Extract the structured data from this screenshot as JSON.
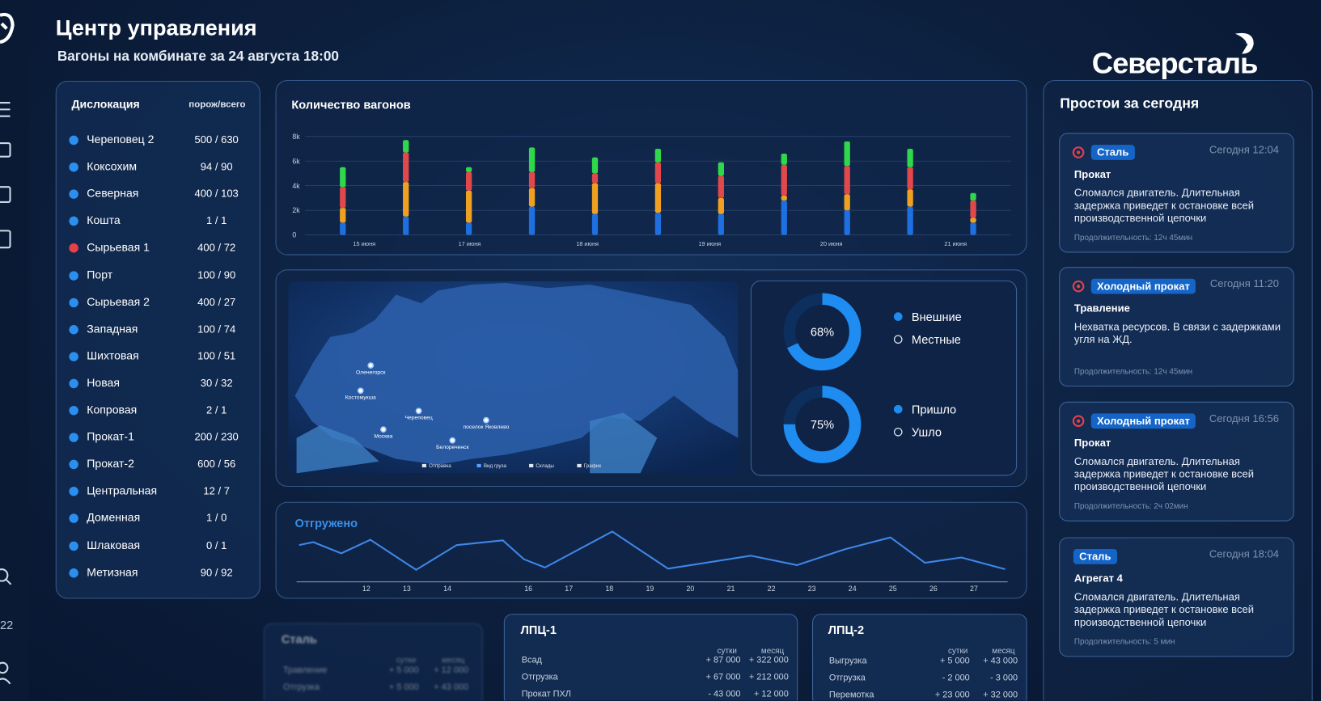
{
  "header": {
    "title": "Центр управления",
    "subtitle": "Вагоны на комбинате за 24 августа 18:00",
    "brand": "Северсталь"
  },
  "sidebar": {
    "badge": "22"
  },
  "dislocation": {
    "title": "Дислокация",
    "column": "порож/всего",
    "rows": [
      {
        "name": "Череповец 2",
        "value": "500 / 630",
        "color": "#2b8ff0"
      },
      {
        "name": "Коксохим",
        "value": "94 / 90",
        "color": "#2b8ff0"
      },
      {
        "name": "Северная",
        "value": "400 / 103",
        "color": "#2b8ff0"
      },
      {
        "name": "Кошта",
        "value": "1 / 1",
        "color": "#2b8ff0"
      },
      {
        "name": "Сырьевая 1",
        "value": "400 / 72",
        "color": "#e8404a"
      },
      {
        "name": "Порт",
        "value": "100 / 90",
        "color": "#2b8ff0"
      },
      {
        "name": "Сырьевая 2",
        "value": "400 / 27",
        "color": "#2b8ff0"
      },
      {
        "name": "Западная",
        "value": "100 / 74",
        "color": "#2b8ff0"
      },
      {
        "name": "Шихтовая",
        "value": "100 / 51",
        "color": "#2b8ff0"
      },
      {
        "name": "Новая",
        "value": "30 / 32",
        "color": "#2b8ff0"
      },
      {
        "name": "Копровая",
        "value": "2 / 1",
        "color": "#2b8ff0"
      },
      {
        "name": "Прокат-1",
        "value": "200 / 230",
        "color": "#2b8ff0"
      },
      {
        "name": "Прокат-2",
        "value": "600 / 56",
        "color": "#2b8ff0"
      },
      {
        "name": "Центральная",
        "value": "12 / 7",
        "color": "#2b8ff0"
      },
      {
        "name": "Доменная",
        "value": "1 / 0",
        "color": "#2b8ff0"
      },
      {
        "name": "Шлаковая",
        "value": "0 / 1",
        "color": "#2b8ff0"
      },
      {
        "name": "Метизная",
        "value": "90 / 92",
        "color": "#2b8ff0"
      }
    ]
  },
  "chart_data": [
    {
      "type": "bar",
      "stacked": true,
      "title": "Количество вагонов",
      "x": [
        0,
        1,
        2,
        3,
        4,
        5,
        6,
        7,
        8,
        9,
        10
      ],
      "series": [
        {
          "color": "#1e6fe0",
          "values": [
            1.0,
            1.5,
            1.0,
            2.3,
            1.7,
            1.8,
            1.7,
            2.8,
            2.0,
            2.3,
            1.0
          ]
        },
        {
          "color": "#f0a020",
          "values": [
            1.2,
            2.8,
            2.6,
            1.5,
            2.5,
            2.4,
            1.3,
            0.4,
            1.3,
            1.4,
            0.4
          ]
        },
        {
          "color": "#e0484c",
          "values": [
            1.7,
            2.4,
            1.5,
            1.3,
            0.8,
            1.7,
            1.8,
            2.5,
            2.3,
            1.8,
            1.4
          ]
        },
        {
          "color": "#2fd84a",
          "values": [
            1.6,
            1.0,
            0.4,
            2.0,
            1.3,
            1.1,
            1.1,
            0.9,
            2.0,
            1.5,
            0.6
          ]
        }
      ],
      "xlim": [
        -0.6,
        10.6
      ],
      "xticks": [
        {
          "value": 0.34,
          "label": "15 июня"
        },
        {
          "value": 2.01,
          "label": "17 июня"
        },
        {
          "value": 3.88,
          "label": "18 июня"
        },
        {
          "value": 5.82,
          "label": "19 июня"
        },
        {
          "value": 7.75,
          "label": "20 июня"
        },
        {
          "value": 9.72,
          "label": "21 июня"
        }
      ],
      "ylim": [
        0,
        8
      ],
      "yticks": [
        0,
        {
          "value": 2,
          "label": "2k"
        },
        {
          "value": 4,
          "label": "4k"
        },
        {
          "value": 6,
          "label": "6k"
        },
        {
          "value": 8,
          "label": "8k"
        }
      ],
      "grid": true
    },
    {
      "type": "donut",
      "categories": [
        "Внешние",
        "Местные"
      ],
      "values": [
        68,
        32
      ],
      "value_labels": [
        "68%",
        null
      ],
      "colors": [
        "#1e8cf0",
        "#0d2f5e"
      ]
    },
    {
      "type": "donut",
      "categories": [
        "Пришло",
        "Ушло"
      ],
      "values": [
        75,
        25
      ],
      "value_labels": [
        "75%",
        null
      ],
      "colors": [
        "#1e8cf0",
        "#0d2f5e"
      ]
    },
    {
      "type": "line",
      "title": "Отгружено",
      "color": "#3f86e6",
      "x": [
        10.34,
        10.69,
        11.38,
        12.1,
        13.23,
        14.23,
        15.37,
        15.89,
        16.41,
        18.07,
        19.45,
        21.49,
        22.63,
        23.82,
        24.94,
        25.79,
        26.69,
        27.77
      ],
      "values": [
        61,
        66,
        47,
        70,
        19,
        61,
        69,
        37,
        23,
        84,
        21,
        43,
        27,
        54,
        74,
        31,
        40,
        20
      ],
      "xlim": [
        10.34,
        27.77
      ],
      "xticks": [
        12,
        13,
        14,
        16,
        17,
        18,
        19,
        20,
        21,
        22,
        23,
        24,
        25,
        26,
        27
      ],
      "ylim": [
        0,
        100
      ]
    }
  ],
  "map": {
    "cities": [
      "Оленегорск",
      "Костомукша",
      "Череповец",
      "поселок Яковлево",
      "Москва",
      "Белореченск"
    ],
    "legend": [
      "Отправка",
      "Вид груза",
      "Склады",
      "График"
    ]
  },
  "downtime": {
    "title": "Простои за сегодня",
    "cards": [
      {
        "alert": true,
        "tag": "Сталь",
        "time": "Сегодня 12:04",
        "title": "Прокат",
        "text": "Сломался двигатель. Длительная задержка приведет к остановке всей производственной цепочки",
        "duration": "Продолжительность: 12ч 45мин"
      },
      {
        "alert": true,
        "tag": "Холодный прокат",
        "time": "Сегодня 11:20",
        "title": "Травление",
        "text": "Нехватка ресурсов. В связи с задержками угля на ЖД.",
        "duration": "Продолжительность: 12ч 45мин"
      },
      {
        "alert": true,
        "tag": "Холодный прокат",
        "time": "Сегодня 16:56",
        "title": "Прокат",
        "text": "Сломался двигатель. Длительная задержка приведет к остановке всей производственной цепочки",
        "duration": "Продолжительность: 2ч 02мин"
      },
      {
        "alert": false,
        "tag": "Сталь",
        "time": "Сегодня 18:04",
        "title": "Агрегат 4",
        "text": "Сломался двигатель. Длительная задержка приведет к остановке всей производственной цепочки",
        "duration": "Продолжительность: 5 мин"
      }
    ]
  },
  "plants": [
    {
      "title": "Сталь",
      "columns": [
        "сутки",
        "месяц"
      ],
      "rows": [
        [
          "Травление",
          "+ 5 000",
          "+ 12 000"
        ],
        [
          "Отгрузка",
          "+ 5 000",
          "+ 43 000"
        ]
      ]
    },
    {
      "title": "ЛПЦ-1",
      "columns": [
        "сутки",
        "месяц"
      ],
      "rows": [
        [
          "Всад",
          "+ 87 000",
          "+ 322 000"
        ],
        [
          "Отгрузка",
          "+ 67 000",
          "+ 212 000"
        ],
        [
          "Прокат ПХЛ",
          "- 43 000",
          "+ 12 000"
        ]
      ]
    },
    {
      "title": "ЛПЦ-2",
      "columns": [
        "сутки",
        "месяц"
      ],
      "rows": [
        [
          "Выгрузка",
          "+ 5 000",
          "+ 43 000"
        ],
        [
          "Отгрузка",
          "- 2 000",
          "- 3 000"
        ],
        [
          "Перемотка",
          "+ 23 000",
          "+ 32 000"
        ]
      ]
    }
  ]
}
